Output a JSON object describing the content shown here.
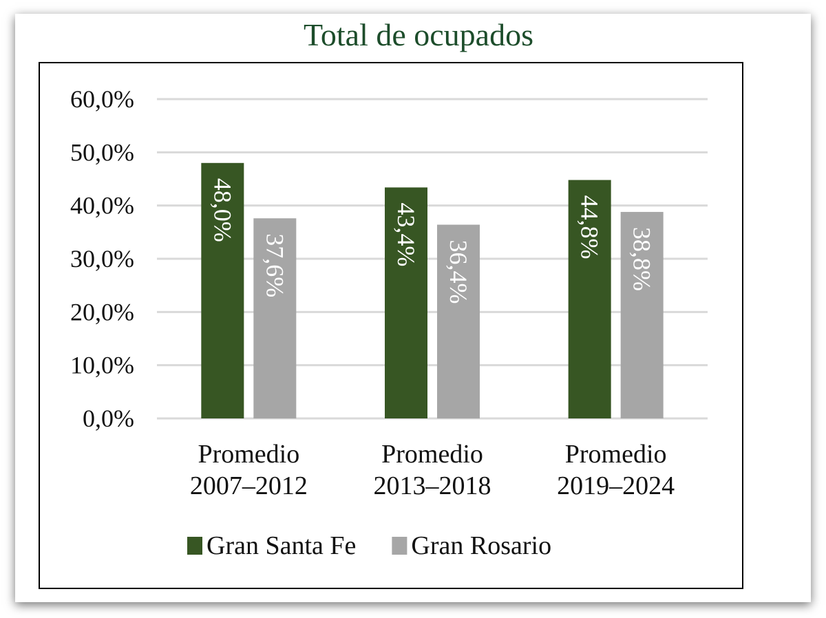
{
  "chart_data": {
    "type": "bar",
    "title": "Total de ocupados",
    "categories": [
      [
        "Promedio",
        "2007–2012"
      ],
      [
        "Promedio",
        "2013–2018"
      ],
      [
        "Promedio",
        "2019–2024"
      ]
    ],
    "series": [
      {
        "name": "Gran Santa Fe",
        "color": "#375623",
        "values": [
          48.0,
          43.4,
          44.8
        ],
        "labels": [
          "48,0%",
          "43,4%",
          "44,8%"
        ]
      },
      {
        "name": "Gran Rosario",
        "color": "#a6a6a6",
        "values": [
          37.6,
          36.4,
          38.8
        ],
        "labels": [
          "37,6%",
          "36,4%",
          "38,8%"
        ]
      }
    ],
    "yticks": [
      0,
      10,
      20,
      30,
      40,
      50,
      60
    ],
    "ytick_labels": [
      "0,0%",
      "10,0%",
      "20,0%",
      "30,0%",
      "40,0%",
      "50,0%",
      "60,0%"
    ],
    "ylim": [
      0,
      60
    ],
    "xlabel": "",
    "ylabel": "",
    "grid": true,
    "legend": "bottom",
    "title_color": "#1d4d2b"
  }
}
